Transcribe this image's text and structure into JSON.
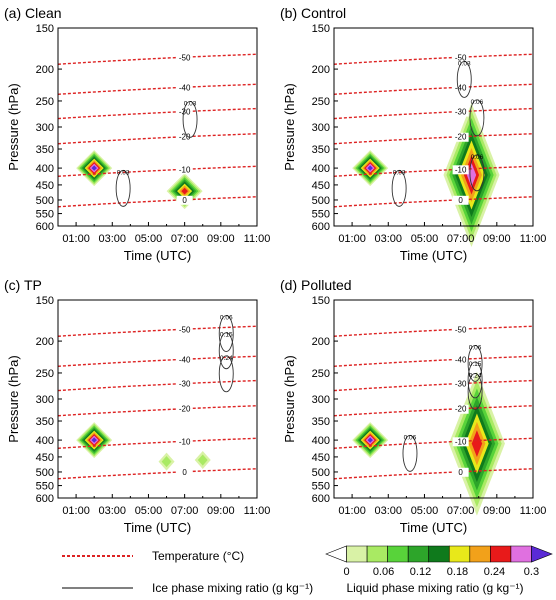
{
  "legend": {
    "temperature_label": "Temperature (°C)",
    "ice_label": "Ice phase mixing ratio (g kg⁻¹)",
    "liquid_label": "Liquid phase mixing ratio (g kg⁻¹)",
    "colorbar_ticks": [
      "0",
      "0.06",
      "0.12",
      "0.18",
      "0.24",
      "0.3"
    ],
    "colorbar_colors": [
      "#ffffff",
      "#d9f2a6",
      "#a9ea63",
      "#58d33a",
      "#2da52a",
      "#0f7a1c",
      "#e8e81a",
      "#f2a11a",
      "#e81a1a",
      "#e070e0",
      "#5a2ad6"
    ]
  },
  "colors": {
    "temperature_line": "#dd2222",
    "ice_contour": "#333333"
  },
  "chart_data": [
    {
      "type": "contour",
      "panel_title": "(a) Clean",
      "xlabel": "Time (UTC)",
      "ylabel": "Pressure (hPa)",
      "xticks": [
        "01:00",
        "03:00",
        "05:00",
        "07:00",
        "09:00",
        "11:00"
      ],
      "yticks": [
        150,
        200,
        250,
        300,
        350,
        400,
        450,
        500,
        550,
        600
      ],
      "xlim": [
        0,
        11
      ],
      "ylim": [
        600,
        150
      ],
      "temperature_isotherms": [
        {
          "label": "-50",
          "pressure": 188
        },
        {
          "label": "-40",
          "pressure": 232
        },
        {
          "label": "-30",
          "pressure": 275
        },
        {
          "label": "-20",
          "pressure": 328
        },
        {
          "label": "-10",
          "pressure": 412
        },
        {
          "label": "0",
          "pressure": 510
        }
      ],
      "ice_contours": [
        {
          "label": "0.03",
          "time": 3.6,
          "pressure": 418
        },
        {
          "label": "0.03",
          "time": 7.3,
          "pressure": 258
        }
      ],
      "liquid_blobs": [
        {
          "time": 2.0,
          "pressure": 400,
          "max": 0.3
        },
        {
          "time": 7.0,
          "pressure": 470,
          "max": 0.24
        }
      ]
    },
    {
      "type": "contour",
      "panel_title": "(b) Control",
      "xlabel": "Time (UTC)",
      "ylabel": "Pressure (hPa)",
      "xticks": [
        "01:00",
        "03:00",
        "05:00",
        "07:00",
        "09:00",
        "11:00"
      ],
      "yticks": [
        150,
        200,
        250,
        300,
        350,
        400,
        450,
        500,
        550,
        600
      ],
      "xlim": [
        0,
        11
      ],
      "ylim": [
        600,
        150
      ],
      "temperature_isotherms": [
        {
          "label": "-50",
          "pressure": 188
        },
        {
          "label": "-40",
          "pressure": 232
        },
        {
          "label": "-30",
          "pressure": 275
        },
        {
          "label": "-20",
          "pressure": 328
        },
        {
          "label": "-10",
          "pressure": 412
        },
        {
          "label": "0",
          "pressure": 510
        }
      ],
      "ice_contours": [
        {
          "label": "0.03",
          "time": 7.2,
          "pressure": 195
        },
        {
          "label": "0.06",
          "time": 7.9,
          "pressure": 255
        },
        {
          "label": "0.03",
          "time": 3.6,
          "pressure": 418
        },
        {
          "label": "0.06",
          "time": 7.9,
          "pressure": 375
        }
      ],
      "liquid_blobs": [
        {
          "time": 2.0,
          "pressure": 400,
          "max": 0.3
        },
        {
          "time": 7.6,
          "pressure": 420,
          "max": 0.27
        }
      ]
    },
    {
      "type": "contour",
      "panel_title": "(c) TP",
      "xlabel": "Time (UTC)",
      "ylabel": "Pressure (hPa)",
      "xticks": [
        "01:00",
        "03:00",
        "05:00",
        "07:00",
        "09:00",
        "11:00"
      ],
      "yticks": [
        150,
        200,
        250,
        300,
        350,
        400,
        450,
        500,
        550,
        600
      ],
      "xlim": [
        0,
        11
      ],
      "ylim": [
        600,
        150
      ],
      "temperature_isotherms": [
        {
          "label": "-50",
          "pressure": 188
        },
        {
          "label": "-40",
          "pressure": 232
        },
        {
          "label": "-30",
          "pressure": 275
        },
        {
          "label": "-20",
          "pressure": 328
        },
        {
          "label": "-10",
          "pressure": 412
        },
        {
          "label": "0",
          "pressure": 510
        }
      ],
      "ice_contours": [
        {
          "label": "0.06",
          "time": 9.3,
          "pressure": 172
        },
        {
          "label": "0.15",
          "time": 9.3,
          "pressure": 194
        },
        {
          "label": "0.24",
          "time": 9.3,
          "pressure": 228
        }
      ],
      "liquid_blobs": [
        {
          "time": 2.0,
          "pressure": 400,
          "max": 0.3
        },
        {
          "time": 6.0,
          "pressure": 465,
          "max": 0.06
        },
        {
          "time": 8.0,
          "pressure": 460,
          "max": 0.06
        }
      ]
    },
    {
      "type": "contour",
      "panel_title": "(d) Polluted",
      "xlabel": "Time (UTC)",
      "ylabel": "Pressure (hPa)",
      "xticks": [
        "01:00",
        "03:00",
        "05:00",
        "07:00",
        "09:00",
        "11:00"
      ],
      "yticks": [
        150,
        200,
        250,
        300,
        350,
        400,
        450,
        500,
        550,
        600
      ],
      "xlim": [
        0,
        11
      ],
      "ylim": [
        600,
        150
      ],
      "temperature_isotherms": [
        {
          "label": "-50",
          "pressure": 188
        },
        {
          "label": "-40",
          "pressure": 232
        },
        {
          "label": "-30",
          "pressure": 275
        },
        {
          "label": "-20",
          "pressure": 328
        },
        {
          "label": "-10",
          "pressure": 412
        },
        {
          "label": "0",
          "pressure": 510
        }
      ],
      "ice_contours": [
        {
          "label": "0.06",
          "time": 7.8,
          "pressure": 212
        },
        {
          "label": "0.15",
          "time": 7.8,
          "pressure": 238
        },
        {
          "label": "0.24",
          "time": 7.8,
          "pressure": 258
        },
        {
          "label": "0.06",
          "time": 4.2,
          "pressure": 398
        }
      ],
      "liquid_blobs": [
        {
          "time": 2.0,
          "pressure": 400,
          "max": 0.3
        },
        {
          "time": 7.9,
          "pressure": 410,
          "max": 0.24
        }
      ]
    }
  ]
}
